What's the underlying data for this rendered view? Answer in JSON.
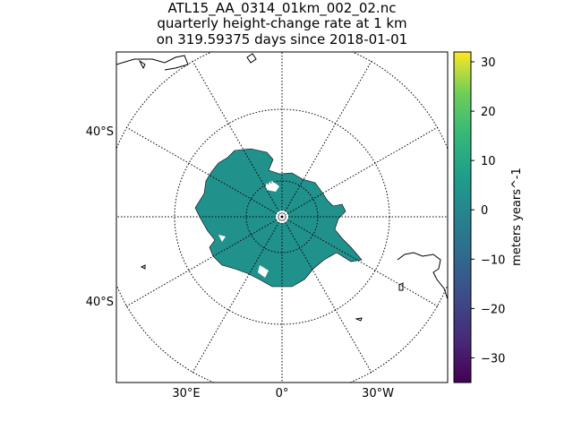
{
  "chart_data": {
    "type": "heatmap",
    "title_lines": [
      "ATL15_AA_0314_01km_002_02.nc",
      "quarterly height-change rate at 1 km",
      "on 319.59375 days since 2018-01-01"
    ],
    "projection": "south-polar stereographic",
    "lat_labels": [
      "40°S",
      "40°S"
    ],
    "lon_labels": [
      "30°E",
      "0°",
      "30°W"
    ],
    "colorbar": {
      "label": "meters years^-1",
      "colormap": "viridis",
      "range": [
        -35,
        32
      ],
      "ticks": [
        30,
        20,
        10,
        0,
        -10,
        -20,
        -30
      ],
      "tick_labels": [
        "30",
        "20",
        "10",
        "0",
        "−10",
        "−20",
        "−30"
      ]
    },
    "field_value": 0,
    "field_color": "#21918c"
  }
}
